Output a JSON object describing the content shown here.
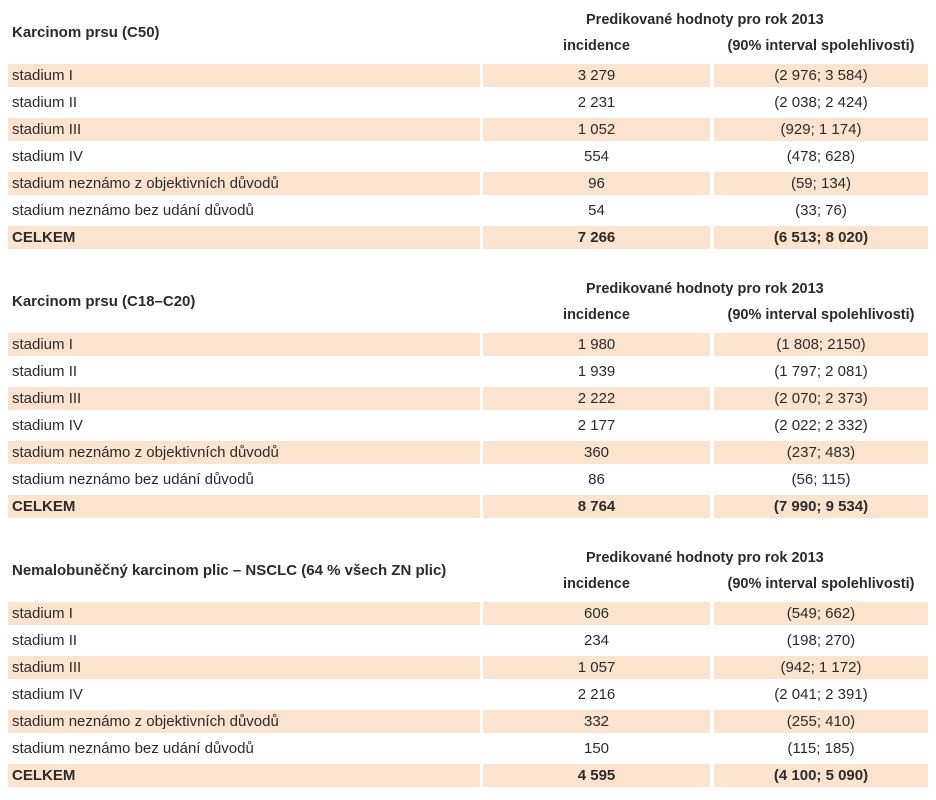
{
  "tables": [
    {
      "title": "Karcinom prsu (C50)",
      "predicted_header": "Predikované hodnoty pro rok 2013",
      "col_incidence": "incidence",
      "col_interval": "(90% interval spolehlivosti)",
      "rows": [
        {
          "label": "stadium I",
          "incidence": "3 279",
          "interval": "(2 976; 3 584)"
        },
        {
          "label": "stadium II",
          "incidence": "2 231",
          "interval": "(2 038; 2 424)"
        },
        {
          "label": "stadium III",
          "incidence": "1 052",
          "interval": "(929; 1 174)"
        },
        {
          "label": "stadium IV",
          "incidence": "554",
          "interval": "(478; 628)"
        },
        {
          "label": "stadium neznámo z objektivních důvodů",
          "incidence": "96",
          "interval": "(59; 134)"
        },
        {
          "label": "stadium neznámo bez udání důvodů",
          "incidence": "54",
          "interval": "(33; 76)"
        },
        {
          "label": "CELKEM",
          "incidence": "7 266",
          "interval": "(6 513; 8 020)"
        }
      ]
    },
    {
      "title": "Karcinom prsu (C18–C20)",
      "predicted_header": "Predikované hodnoty pro rok 2013",
      "col_incidence": "incidence",
      "col_interval": "(90% interval spolehlivosti)",
      "rows": [
        {
          "label": "stadium I",
          "incidence": "1 980",
          "interval": "(1 808; 2150)"
        },
        {
          "label": "stadium II",
          "incidence": "1 939",
          "interval": "(1 797; 2 081)"
        },
        {
          "label": "stadium III",
          "incidence": "2 222",
          "interval": "(2 070; 2 373)"
        },
        {
          "label": "stadium IV",
          "incidence": "2 177",
          "interval": "(2 022; 2 332)"
        },
        {
          "label": "stadium neznámo z objektivních důvodů",
          "incidence": "360",
          "interval": "(237; 483)"
        },
        {
          "label": "stadium neznámo bez udání důvodů",
          "incidence": "86",
          "interval": "(56; 115)"
        },
        {
          "label": "CELKEM",
          "incidence": "8 764",
          "interval": "(7 990; 9 534)"
        }
      ]
    },
    {
      "title": "Nemalobuněčný karcinom plic – NSCLC (64 % všech ZN plic)",
      "predicted_header": "Predikované hodnoty pro rok 2013",
      "col_incidence": "incidence",
      "col_interval": "(90% interval spolehlivosti)",
      "rows": [
        {
          "label": "stadium I",
          "incidence": "606",
          "interval": "(549; 662)"
        },
        {
          "label": "stadium II",
          "incidence": "234",
          "interval": "(198; 270)"
        },
        {
          "label": "stadium III",
          "incidence": "1 057",
          "interval": "(942; 1 172)"
        },
        {
          "label": "stadium IV",
          "incidence": "2 216",
          "interval": "(2 041; 2 391)"
        },
        {
          "label": "stadium neznámo z objektivních důvodů",
          "incidence": "332",
          "interval": "(255; 410)"
        },
        {
          "label": "stadium neznámo bez udání důvodů",
          "incidence": "150",
          "interval": "(115; 185)"
        },
        {
          "label": "CELKEM",
          "incidence": "4 595",
          "interval": "(4 100; 5 090)"
        }
      ]
    }
  ],
  "colors": {
    "row_shade": "#fbe3cd",
    "text": "#2b2b2b",
    "background": "#ffffff"
  }
}
